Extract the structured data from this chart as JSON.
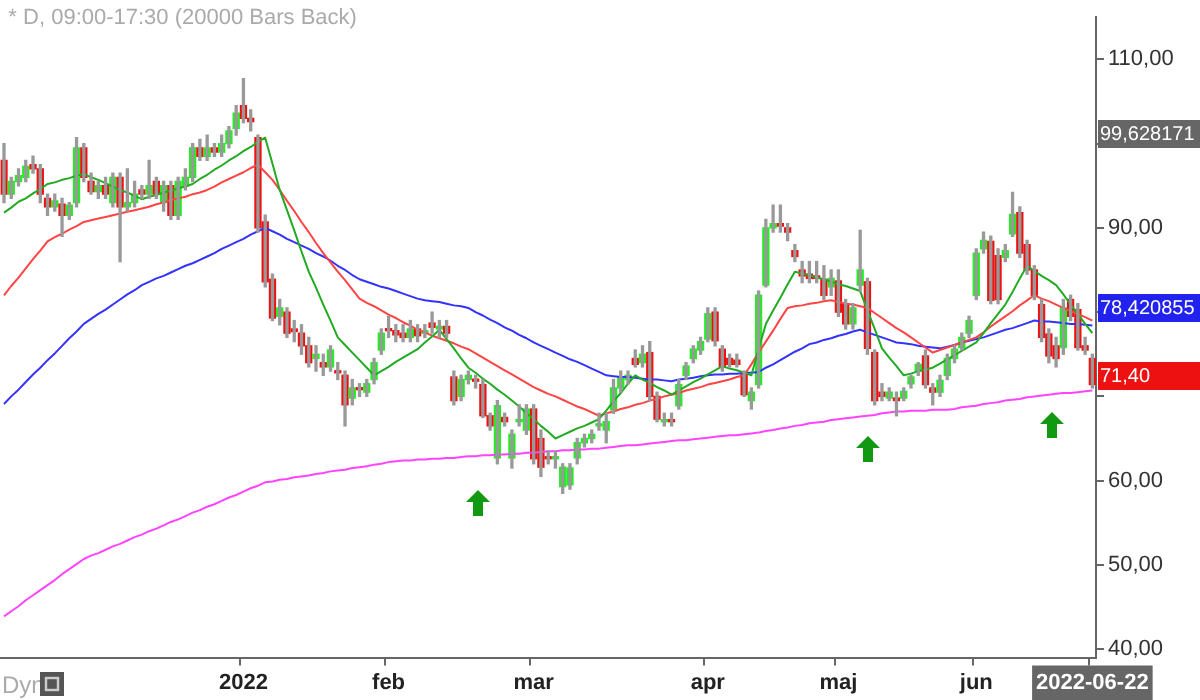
{
  "chart_data": {
    "type": "candlestick",
    "title": "* D, 09:00-17:30 (20000 Bars Back)",
    "categories": [
      null,
      null,
      null,
      null,
      null,
      null,
      null,
      null,
      null,
      null,
      null,
      null,
      null,
      null,
      null,
      null,
      null,
      null,
      null,
      null,
      null,
      null,
      null,
      null,
      null,
      null,
      null,
      null,
      null,
      null,
      null,
      null,
      null,
      "2022",
      null,
      null,
      null,
      null,
      null,
      null,
      null,
      null,
      null,
      null,
      null,
      null,
      null,
      null,
      null,
      null,
      null,
      null,
      null,
      "feb",
      null,
      null,
      null,
      null,
      null,
      null,
      null,
      null,
      null,
      null,
      null,
      null,
      null,
      null,
      null,
      null,
      null,
      null,
      null,
      "mar",
      null,
      null,
      null,
      null,
      null,
      null,
      null,
      null,
      null,
      null,
      null,
      null,
      null,
      null,
      null,
      null,
      null,
      null,
      null,
      null,
      null,
      null,
      null,
      "apr",
      null,
      null,
      null,
      null,
      null,
      null,
      null,
      null,
      null,
      null,
      null,
      null,
      null,
      null,
      null,
      null,
      null,
      "maj",
      null,
      null,
      null,
      null,
      null,
      null,
      null,
      null,
      null,
      null,
      null,
      null,
      null,
      null,
      null,
      null,
      null,
      null,
      "jun",
      null,
      null,
      null,
      null,
      null,
      null,
      null,
      null,
      null,
      null,
      null,
      null,
      null,
      null,
      null,
      "2022-06-22"
    ],
    "ohlc": [
      [
        98,
        100,
        93,
        94
      ],
      [
        94,
        96,
        93.5,
        95.5
      ],
      [
        95.5,
        97,
        95,
        96.2
      ],
      [
        96,
        98,
        95.5,
        97.3
      ],
      [
        97.5,
        98.5,
        96.5,
        97
      ],
      [
        97,
        97.5,
        93,
        94
      ],
      [
        93.5,
        94,
        91.5,
        92.5
      ],
      [
        92.5,
        94,
        92,
        93.2
      ],
      [
        92.8,
        93.5,
        89,
        91.5
      ],
      [
        91.5,
        93,
        91,
        92.7
      ],
      [
        93,
        100.7,
        92.5,
        99.5
      ],
      [
        99.5,
        100,
        95.5,
        96
      ],
      [
        95.5,
        96.5,
        94,
        94.3
      ],
      [
        94.3,
        95.5,
        93.5,
        95
      ],
      [
        95,
        96,
        93.5,
        94
      ],
      [
        93,
        96.5,
        92.5,
        96
      ],
      [
        96,
        96.5,
        86,
        92.5
      ],
      [
        92.5,
        97,
        92,
        93
      ],
      [
        93,
        95.5,
        92.5,
        94
      ],
      [
        94.5,
        95,
        93.5,
        94
      ],
      [
        94,
        98,
        93.5,
        95
      ],
      [
        95.5,
        96,
        93.5,
        94
      ],
      [
        93,
        95.5,
        92,
        95
      ],
      [
        95,
        95.5,
        91,
        91.5
      ],
      [
        91.5,
        96,
        91,
        95.5
      ],
      [
        95,
        97,
        94.5,
        96
      ],
      [
        96,
        100,
        95.5,
        99.5
      ],
      [
        99.5,
        100.5,
        98,
        98.5
      ],
      [
        98.5,
        101,
        98,
        99.5
      ],
      [
        99.5,
        100,
        98.5,
        99
      ],
      [
        99,
        101,
        98.5,
        100
      ],
      [
        100,
        102,
        99.5,
        101.5
      ],
      [
        101.8,
        104.5,
        101,
        103.6
      ],
      [
        104.5,
        107.7,
        102.5,
        103
      ],
      [
        103,
        104,
        101.5,
        102.6
      ],
      [
        100.7,
        101,
        89.5,
        90
      ],
      [
        90.7,
        91.5,
        83,
        83.6
      ],
      [
        83.9,
        84.5,
        79,
        79.3
      ],
      [
        79.5,
        81.5,
        78.5,
        80.5
      ],
      [
        80,
        80.5,
        77,
        77.5
      ],
      [
        78,
        79,
        76.5,
        77.7
      ],
      [
        77.5,
        78.5,
        75,
        76
      ],
      [
        76,
        77,
        73.5,
        74
      ],
      [
        74.5,
        76,
        73,
        75
      ],
      [
        74,
        75,
        72.5,
        73.5
      ],
      [
        73.5,
        76,
        73,
        75.5
      ],
      [
        73,
        74,
        72,
        72.8
      ],
      [
        72.5,
        73,
        66.5,
        69
      ],
      [
        69.8,
        72,
        69,
        71
      ],
      [
        71,
        71.5,
        70,
        70.8
      ],
      [
        70.5,
        72,
        70,
        71.5
      ],
      [
        72,
        74.5,
        71.5,
        74
      ],
      [
        75.5,
        78,
        75,
        77.5
      ],
      [
        78,
        79.5,
        77,
        77.8
      ],
      [
        77.8,
        78.5,
        76.5,
        77.3
      ],
      [
        77.5,
        78.5,
        76.5,
        77
      ],
      [
        77,
        79,
        76.5,
        78
      ],
      [
        78,
        78.5,
        76.5,
        77.2
      ],
      [
        77.5,
        78.5,
        77,
        77.8
      ],
      [
        78.7,
        80,
        77.5,
        78.2
      ],
      [
        78,
        79,
        77,
        78.3
      ],
      [
        78.3,
        79,
        77,
        77.5
      ],
      [
        72.3,
        73,
        69,
        69.5
      ],
      [
        70,
        72.5,
        69.5,
        72
      ],
      [
        72,
        73,
        71.5,
        72.5
      ],
      [
        72,
        72.5,
        71,
        71.8
      ],
      [
        71.4,
        72,
        67.5,
        67.7
      ],
      [
        67.7,
        68,
        66,
        66.5
      ],
      [
        62.7,
        69.5,
        62,
        68.9
      ],
      [
        67.5,
        68,
        66.5,
        67
      ],
      [
        62.7,
        66,
        61.5,
        65.5
      ],
      [
        67,
        69,
        66.5,
        67.2
      ],
      [
        66,
        69,
        65.5,
        68.5
      ],
      [
        68.5,
        69,
        62,
        62.6
      ],
      [
        65,
        66,
        60.5,
        61.6
      ],
      [
        62.8,
        63.5,
        62,
        62.6
      ],
      [
        62.6,
        63.5,
        61.5,
        62.8
      ],
      [
        59.3,
        62,
        58.5,
        61.6
      ],
      [
        59.5,
        62,
        59,
        61.5
      ],
      [
        62.7,
        65,
        62,
        64.5
      ],
      [
        64.5,
        65.5,
        64,
        65
      ],
      [
        65,
        66,
        64.5,
        65.5
      ],
      [
        66.5,
        68,
        66,
        66.7
      ],
      [
        66,
        68,
        64.5,
        67
      ],
      [
        68.4,
        72,
        68,
        71
      ],
      [
        71,
        73,
        70.5,
        72.3
      ],
      [
        72,
        73,
        71.5,
        72.5
      ],
      [
        74.5,
        75.5,
        73.5,
        73.8
      ],
      [
        74,
        76,
        73.5,
        75
      ],
      [
        75.2,
        76.5,
        69.5,
        70
      ],
      [
        70,
        70.5,
        67,
        67.3
      ],
      [
        67,
        68,
        66.5,
        67.2
      ],
      [
        67.2,
        68,
        66.5,
        67
      ],
      [
        68.9,
        72,
        68.5,
        71.4
      ],
      [
        72.5,
        74,
        72,
        73.6
      ],
      [
        74.5,
        76,
        74,
        75.6
      ],
      [
        75.5,
        77,
        75,
        76.5
      ],
      [
        76.8,
        80.5,
        76.5,
        79.8
      ],
      [
        80,
        80.5,
        76,
        76.6
      ],
      [
        75.6,
        76,
        73,
        73.5
      ],
      [
        74.5,
        75,
        73.5,
        73.8
      ],
      [
        74.3,
        75,
        73.5,
        73.8
      ],
      [
        72.6,
        73,
        70,
        70.2
      ],
      [
        69.5,
        71,
        68.5,
        70.5
      ],
      [
        71.4,
        82.5,
        71,
        82
      ],
      [
        83.2,
        91,
        83,
        90
      ],
      [
        90,
        92.7,
        89.5,
        90.5
      ],
      [
        90.5,
        92.7,
        89.5,
        90.2
      ],
      [
        90,
        90.5,
        88.5,
        89.5
      ],
      [
        87.3,
        88,
        86,
        86.6
      ],
      [
        85,
        86,
        83.5,
        84.3
      ],
      [
        84.5,
        86,
        83.5,
        84
      ],
      [
        84.3,
        86,
        83.5,
        84
      ],
      [
        83.9,
        85.5,
        81.5,
        82
      ],
      [
        83,
        85,
        82,
        84
      ],
      [
        83.7,
        85,
        79.5,
        80
      ],
      [
        80.9,
        81.5,
        78,
        78.6
      ],
      [
        78.6,
        81,
        78,
        80.5
      ],
      [
        83.2,
        89.7,
        82.5,
        85
      ],
      [
        83.6,
        84,
        75,
        75.7
      ],
      [
        75.2,
        75.5,
        69,
        69.5
      ],
      [
        70.5,
        71.5,
        69.5,
        70
      ],
      [
        69.8,
        71,
        69.5,
        70.5
      ],
      [
        69.8,
        70.5,
        67.7,
        69.5
      ],
      [
        69.8,
        71,
        69.5,
        70.6
      ],
      [
        71.5,
        72.5,
        71,
        72.3
      ],
      [
        73,
        74,
        72.5,
        73.8
      ],
      [
        74.8,
        75.5,
        71,
        71.4
      ],
      [
        71,
        71.5,
        69,
        70.5
      ],
      [
        70.5,
        72.5,
        70,
        71.9
      ],
      [
        72.5,
        75,
        72,
        74.5
      ],
      [
        74.5,
        76,
        74,
        75.6
      ],
      [
        75.8,
        77.5,
        75.5,
        77
      ],
      [
        77.5,
        79.5,
        77,
        79
      ],
      [
        82,
        87.5,
        81.5,
        87
      ],
      [
        87.5,
        89.5,
        87,
        88.5
      ],
      [
        88.4,
        89,
        81,
        81.4
      ],
      [
        86.7,
        87.5,
        81,
        81.5
      ],
      [
        86.5,
        88,
        86,
        87.3
      ],
      [
        89.3,
        94.2,
        89,
        91.6
      ],
      [
        91.8,
        92.5,
        86.5,
        87
      ],
      [
        88,
        88.5,
        84.5,
        85
      ],
      [
        85,
        85.5,
        81.5,
        82
      ],
      [
        80.9,
        81.5,
        76.5,
        77
      ],
      [
        77.4,
        78,
        74,
        74.8
      ],
      [
        76,
        77,
        73.5,
        74.5
      ],
      [
        75.8,
        81.5,
        75,
        80.5
      ],
      [
        81.5,
        82,
        79,
        79.5
      ],
      [
        80.3,
        81,
        75.5,
        75.8
      ],
      [
        76,
        77,
        75,
        75.5
      ],
      [
        74.5,
        75,
        71,
        71.4
      ]
    ],
    "series": [
      {
        "type": "line",
        "color": "#22aa22",
        "values": [
          91.8,
          92.4,
          93.1,
          93.5,
          94.1,
          94.6,
          95.2,
          95.4,
          95.7,
          95.9,
          96.2,
          96.4,
          96.0,
          95.7,
          95.3,
          94.9,
          94.5,
          94.2,
          93.8,
          93.4,
          93.7,
          93.9,
          94.2,
          94.4,
          94.7,
          94.9,
          95.2,
          95.8,
          96.3,
          96.9,
          97.4,
          98.0,
          98.5,
          99.1,
          99.6,
          100.2,
          100.7,
          97.6,
          94.5,
          92.1,
          89.7,
          87.2,
          84.8,
          82.9,
          80.9,
          79.0,
          77.0,
          76.1,
          75.2,
          74.3,
          73.4,
          72.5,
          73.0,
          73.5,
          74.1,
          74.6,
          75.1,
          75.6,
          76.4,
          77.1,
          77.9,
          76.8,
          75.7,
          74.5,
          73.4,
          72.8,
          72.1,
          71.5,
          70.8,
          70.2,
          69.5,
          68.8,
          68.0,
          67.3,
          66.5,
          65.8,
          65.0,
          65.4,
          65.8,
          66.2,
          66.5,
          66.9,
          67.3,
          68.3,
          69.4,
          70.4,
          71.5,
          72.5,
          72.0,
          71.6,
          71.1,
          70.7,
          70.2,
          70.7,
          71.2,
          71.7,
          72.1,
          72.6,
          73.1,
          73.6,
          73.3,
          73.1,
          72.8,
          72.5,
          75.6,
          78.6,
          80.2,
          81.7,
          83.3,
          84.8,
          84.6,
          84.4,
          84.1,
          83.9,
          83.6,
          83.3,
          83.1,
          82.8,
          82.5,
          80.2,
          78.0,
          75.7,
          74.6,
          73.6,
          72.5,
          72.7,
          73.0,
          73.2,
          73.4,
          73.9,
          74.4,
          74.9,
          75.4,
          75.9,
          76.4,
          77.5,
          78.7,
          79.8,
          80.9,
          82.4,
          84.0,
          85.5,
          84.9,
          84.3,
          83.8,
          83.2,
          82.1,
          80.9,
          79.8,
          78.6,
          77.5
        ]
      },
      {
        "type": "line",
        "color": "#ff4444",
        "values": [
          82.0,
          83.1,
          84.1,
          85.2,
          86.3,
          87.3,
          88.4,
          88.9,
          89.3,
          89.8,
          90.2,
          90.7,
          90.9,
          91.1,
          91.3,
          91.5,
          91.7,
          91.9,
          92.1,
          92.3,
          92.5,
          92.8,
          93.0,
          93.3,
          93.5,
          93.7,
          94.0,
          94.2,
          94.5,
          94.9,
          95.4,
          95.8,
          96.2,
          96.6,
          97.1,
          97.5,
          96.6,
          95.7,
          94.5,
          93.2,
          92.0,
          90.7,
          89.5,
          88.2,
          87.0,
          85.9,
          84.8,
          83.8,
          82.7,
          81.6,
          81.1,
          80.7,
          80.2,
          79.7,
          79.3,
          78.8,
          78.4,
          77.9,
          77.6,
          77.2,
          76.9,
          76.6,
          76.3,
          75.9,
          75.6,
          75.1,
          74.6,
          74.1,
          73.6,
          73.1,
          72.6,
          72.1,
          71.6,
          71.1,
          70.7,
          70.3,
          70.0,
          69.6,
          69.2,
          68.8,
          68.5,
          68.1,
          67.7,
          68.0,
          68.2,
          68.5,
          68.7,
          69.0,
          69.2,
          69.5,
          69.7,
          70.0,
          70.2,
          70.4,
          70.7,
          70.9,
          71.1,
          71.4,
          71.6,
          71.8,
          72.0,
          72.3,
          72.5,
          73.8,
          75.2,
          76.5,
          77.8,
          79.2,
          80.5,
          80.7,
          80.8,
          81.0,
          81.1,
          81.3,
          81.4,
          81.2,
          81.0,
          80.9,
          80.7,
          80.5,
          79.9,
          79.3,
          78.7,
          78.1,
          77.6,
          77.0,
          76.4,
          75.8,
          75.2,
          75.5,
          75.8,
          76.1,
          76.4,
          76.7,
          77.0,
          77.6,
          78.3,
          78.9,
          79.5,
          80.1,
          80.8,
          81.4,
          82.0,
          81.6,
          81.3,
          80.9,
          80.5,
          80.1,
          79.8,
          79.4,
          79.0
        ]
      },
      {
        "type": "line",
        "color": "#3333ff",
        "values": [
          69.1,
          70.0,
          70.8,
          71.7,
          72.6,
          73.4,
          74.3,
          75.1,
          76.0,
          76.9,
          77.7,
          78.6,
          79.2,
          79.8,
          80.3,
          80.9,
          81.5,
          82.1,
          82.6,
          83.2,
          83.6,
          84.0,
          84.3,
          84.7,
          85.1,
          85.5,
          85.8,
          86.2,
          86.6,
          87.0,
          87.5,
          87.9,
          88.3,
          88.7,
          89.2,
          89.6,
          90.0,
          89.6,
          89.2,
          88.7,
          88.3,
          87.9,
          87.5,
          87.0,
          86.6,
          86.1,
          85.5,
          85.0,
          84.4,
          83.9,
          83.6,
          83.3,
          83.0,
          82.8,
          82.5,
          82.2,
          81.9,
          81.6,
          81.4,
          81.3,
          81.2,
          81.0,
          80.8,
          80.7,
          80.5,
          80.0,
          79.6,
          79.1,
          78.7,
          78.2,
          77.8,
          77.3,
          76.9,
          76.4,
          76.0,
          75.6,
          75.2,
          74.8,
          74.4,
          74.1,
          73.7,
          73.3,
          72.9,
          72.5,
          72.4,
          72.3,
          72.3,
          72.2,
          72.1,
          72.0,
          72.0,
          71.9,
          71.8,
          72.0,
          72.1,
          72.2,
          72.4,
          72.5,
          72.6,
          72.6,
          72.7,
          72.7,
          72.8,
          72.8,
          72.9,
          73.4,
          73.8,
          74.3,
          74.8,
          75.3,
          75.7,
          76.2,
          76.4,
          76.7,
          76.9,
          77.2,
          77.4,
          77.7,
          77.9,
          77.6,
          77.3,
          77.0,
          76.7,
          76.4,
          76.3,
          76.2,
          76.0,
          75.9,
          75.8,
          75.7,
          75.9,
          76.1,
          76.4,
          76.6,
          76.8,
          77.0,
          77.3,
          77.6,
          77.9,
          78.1,
          78.4,
          78.7,
          79.0,
          78.9,
          78.9,
          78.8,
          78.7,
          78.6,
          78.6,
          78.5,
          78.4
        ]
      },
      {
        "type": "line",
        "color": "#ff44ff",
        "values": [
          43.9,
          44.5,
          45.1,
          45.8,
          46.4,
          47.0,
          47.6,
          48.2,
          48.9,
          49.5,
          50.1,
          50.7,
          51.1,
          51.4,
          51.8,
          52.2,
          52.5,
          52.9,
          53.3,
          53.6,
          54.0,
          54.3,
          54.7,
          55.1,
          55.4,
          55.8,
          56.2,
          56.5,
          56.9,
          57.2,
          57.6,
          58.0,
          58.3,
          58.7,
          59.1,
          59.4,
          59.8,
          59.9,
          60.1,
          60.2,
          60.4,
          60.5,
          60.6,
          60.8,
          60.9,
          61.1,
          61.2,
          61.3,
          61.5,
          61.6,
          61.7,
          61.9,
          62.0,
          62.2,
          62.3,
          62.4,
          62.4,
          62.5,
          62.5,
          62.6,
          62.6,
          62.7,
          62.7,
          62.8,
          62.9,
          62.9,
          63.0,
          63.0,
          63.1,
          63.1,
          63.2,
          63.2,
          63.3,
          63.3,
          63.4,
          63.5,
          63.5,
          63.6,
          63.6,
          63.7,
          63.7,
          63.8,
          63.8,
          63.9,
          64.0,
          64.1,
          64.2,
          64.2,
          64.3,
          64.4,
          64.5,
          64.6,
          64.7,
          64.8,
          64.8,
          64.9,
          65.0,
          65.1,
          65.2,
          65.3,
          65.4,
          65.4,
          65.5,
          65.6,
          65.7,
          65.9,
          66.0,
          66.2,
          66.3,
          66.5,
          66.6,
          66.8,
          66.9,
          67.0,
          67.2,
          67.3,
          67.4,
          67.5,
          67.6,
          67.7,
          67.8,
          68.0,
          68.1,
          68.2,
          68.2,
          68.3,
          68.3,
          68.3,
          68.4,
          68.4,
          68.4,
          68.5,
          68.7,
          68.8,
          68.9,
          69.1,
          69.2,
          69.3,
          69.5,
          69.6,
          69.7,
          69.9,
          70.0,
          70.1,
          70.2,
          70.3,
          70.4,
          70.4,
          70.5,
          70.6,
          70.7
        ]
      }
    ],
    "ylim": [
      39,
      115
    ],
    "yticks": [
      {
        "value": 40,
        "label": "40,00"
      },
      {
        "value": 50,
        "label": "50,00"
      },
      {
        "value": 60,
        "label": "60,00"
      },
      {
        "value": 70,
        "label": null
      },
      {
        "value": 80,
        "label": null
      },
      {
        "value": 90,
        "label": "90,00"
      },
      {
        "value": 100,
        "label": null
      },
      {
        "value": 110,
        "label": "110,00"
      }
    ],
    "marker": "none",
    "annotations": [
      "Dyn",
      "99,628171",
      "78,420855",
      "71,40"
    ]
  }
}
